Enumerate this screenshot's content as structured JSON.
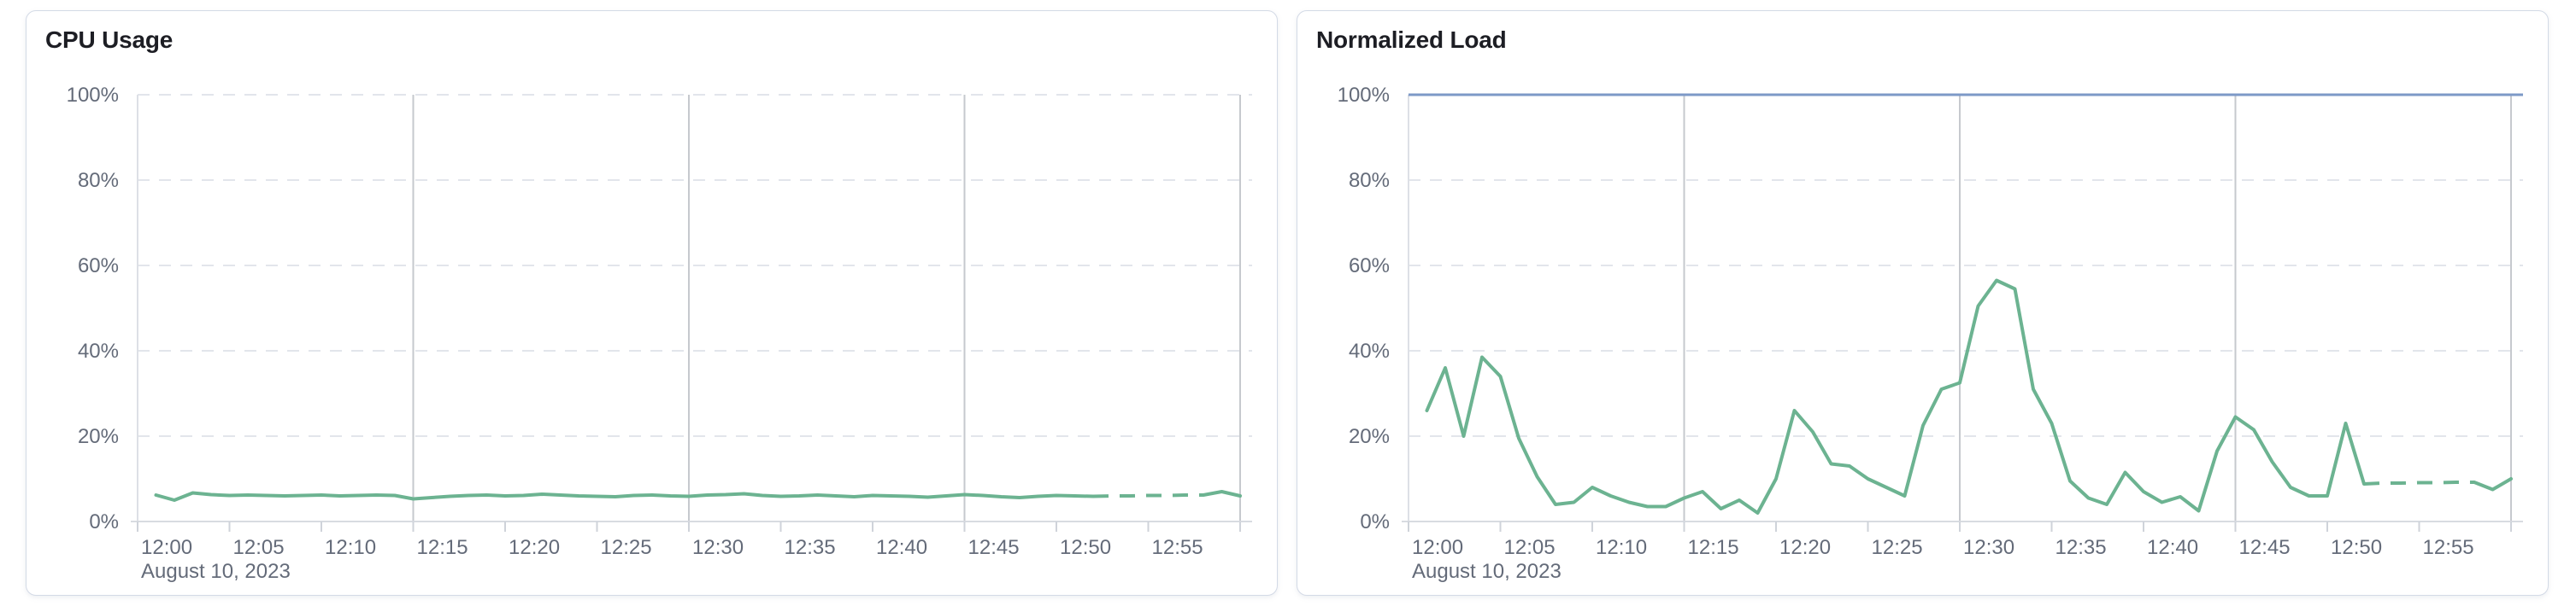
{
  "palette": {
    "series_green": "#6CB391",
    "threshold_blue": "#7D99C7"
  },
  "chart_data": [
    {
      "type": "line",
      "title": "CPU Usage",
      "x_axis": {
        "domain": [
          "12:00",
          "13:00"
        ],
        "tick_labels": [
          "12:00",
          "12:05",
          "12:10",
          "12:15",
          "12:20",
          "12:25",
          "12:30",
          "12:35",
          "12:40",
          "12:45",
          "12:50",
          "12:55"
        ],
        "major_gridlines": [
          "12:15",
          "12:30",
          "12:45",
          "13:00"
        ],
        "date_label": "August 10, 2023"
      },
      "y_axis": {
        "min": 0,
        "max": 100,
        "ticks": [
          0,
          20,
          40,
          60,
          80,
          100
        ],
        "tick_labels": [
          "0%",
          "20%",
          "40%",
          "60%",
          "80%",
          "100%"
        ]
      },
      "threshold": null,
      "series": [
        {
          "name": "CPU Usage",
          "color": "#6CB391",
          "dashed_from": "12:52",
          "dashed_to": "12:58",
          "times": [
            "12:01",
            "12:02",
            "12:03",
            "12:04",
            "12:05",
            "12:06",
            "12:07",
            "12:08",
            "12:09",
            "12:10",
            "12:11",
            "12:12",
            "12:13",
            "12:14",
            "12:15",
            "12:16",
            "12:17",
            "12:18",
            "12:19",
            "12:20",
            "12:21",
            "12:22",
            "12:23",
            "12:24",
            "12:25",
            "12:26",
            "12:27",
            "12:28",
            "12:29",
            "12:30",
            "12:31",
            "12:32",
            "12:33",
            "12:34",
            "12:35",
            "12:36",
            "12:37",
            "12:38",
            "12:39",
            "12:40",
            "12:41",
            "12:42",
            "12:43",
            "12:44",
            "12:45",
            "12:46",
            "12:47",
            "12:48",
            "12:49",
            "12:50",
            "12:51",
            "12:52",
            "12:53",
            "12:54",
            "12:55",
            "12:56",
            "12:57",
            "12:58",
            "12:59",
            "13:00"
          ],
          "values": [
            6.2,
            5.0,
            6.7,
            6.3,
            6.1,
            6.2,
            6.1,
            6.0,
            6.1,
            6.2,
            6.0,
            6.1,
            6.2,
            6.1,
            5.3,
            5.6,
            5.9,
            6.1,
            6.2,
            6.0,
            6.1,
            6.4,
            6.2,
            6.0,
            5.9,
            5.8,
            6.1,
            6.2,
            6.0,
            5.9,
            6.2,
            6.3,
            6.5,
            6.1,
            5.9,
            6.0,
            6.2,
            6.0,
            5.8,
            6.1,
            6.0,
            5.9,
            5.7,
            6.0,
            6.3,
            6.1,
            5.8,
            5.6,
            5.9,
            6.1,
            6.0,
            5.9,
            6.0,
            6.0,
            6.1,
            6.1,
            6.2,
            6.2,
            7.0,
            6.0
          ]
        }
      ]
    },
    {
      "type": "line",
      "title": "Normalized Load",
      "x_axis": {
        "domain": [
          "12:00",
          "13:00"
        ],
        "tick_labels": [
          "12:00",
          "12:05",
          "12:10",
          "12:15",
          "12:20",
          "12:25",
          "12:30",
          "12:35",
          "12:40",
          "12:45",
          "12:50",
          "12:55"
        ],
        "major_gridlines": [
          "12:15",
          "12:30",
          "12:45",
          "13:00"
        ],
        "date_label": "August 10, 2023"
      },
      "y_axis": {
        "min": 0,
        "max": 100,
        "ticks": [
          0,
          20,
          40,
          60,
          80,
          100
        ],
        "tick_labels": [
          "0%",
          "20%",
          "40%",
          "60%",
          "80%",
          "100%"
        ]
      },
      "threshold": {
        "value": 100,
        "color": "#7D99C7"
      },
      "series": [
        {
          "name": "Normalized Load",
          "color": "#6CB391",
          "dashed_from": "12:52",
          "dashed_to": "12:58",
          "times": [
            "12:01",
            "12:02",
            "12:03",
            "12:04",
            "12:05",
            "12:06",
            "12:07",
            "12:08",
            "12:09",
            "12:10",
            "12:11",
            "12:12",
            "12:13",
            "12:14",
            "12:15",
            "12:16",
            "12:17",
            "12:18",
            "12:19",
            "12:20",
            "12:21",
            "12:22",
            "12:23",
            "12:24",
            "12:25",
            "12:26",
            "12:27",
            "12:28",
            "12:29",
            "12:30",
            "12:31",
            "12:32",
            "12:33",
            "12:34",
            "12:35",
            "12:36",
            "12:37",
            "12:38",
            "12:39",
            "12:40",
            "12:41",
            "12:42",
            "12:43",
            "12:44",
            "12:45",
            "12:46",
            "12:47",
            "12:48",
            "12:49",
            "12:50",
            "12:51",
            "12:52",
            "12:53",
            "12:54",
            "12:55",
            "12:56",
            "12:57",
            "12:58",
            "12:59",
            "13:00"
          ],
          "values": [
            26,
            36,
            20,
            38.5,
            34,
            19.5,
            10.5,
            4,
            4.5,
            8,
            6,
            4.5,
            3.5,
            3.5,
            5.5,
            7,
            3,
            5,
            2,
            10,
            26,
            21,
            13.5,
            13,
            10,
            8,
            6,
            22.5,
            31,
            32.5,
            50.5,
            56.5,
            54.5,
            31,
            23,
            9.5,
            5.5,
            4,
            11.5,
            7,
            4.5,
            5.8,
            2.5,
            16.5,
            24.5,
            21.5,
            14,
            8,
            6,
            6,
            23,
            8.8,
            9,
            9,
            9.1,
            9.1,
            9.2,
            9.2,
            7.5,
            10
          ]
        }
      ]
    }
  ]
}
